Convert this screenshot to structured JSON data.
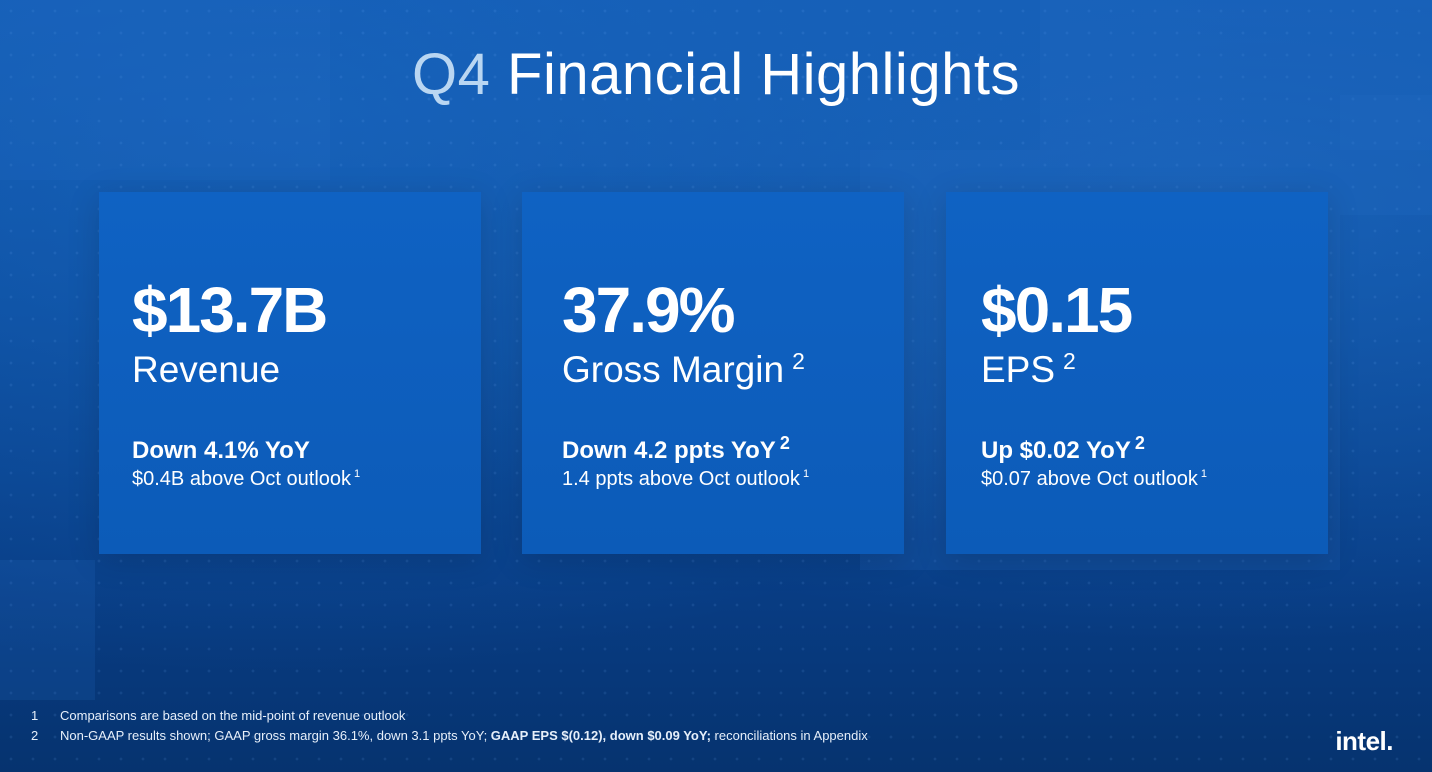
{
  "title": {
    "q4": "Q4",
    "rest": "Financial Highlights"
  },
  "cards": [
    {
      "value": "$13.7B",
      "label": "Revenue",
      "label_sup": "",
      "change": "Down 4.1% YoY",
      "change_sup": "",
      "outlook": "$0.4B above Oct outlook",
      "outlook_sup": "1"
    },
    {
      "value": "37.9%",
      "label": "Gross Margin",
      "label_sup": "2",
      "change": "Down 4.2 ppts YoY",
      "change_sup": "2",
      "outlook": "1.4 ppts above Oct outlook",
      "outlook_sup": "1"
    },
    {
      "value": "$0.15",
      "label": "EPS",
      "label_sup": "2",
      "change": "Up $0.02 YoY",
      "change_sup": "2",
      "outlook": "$0.07 above Oct outlook",
      "outlook_sup": "1"
    }
  ],
  "footnotes": [
    {
      "num": "1",
      "text": "Comparisons are based on the mid-point of revenue outlook"
    },
    {
      "num": "2",
      "text_a": "Non-GAAP results shown; GAAP gross margin 36.1%, down 3.1 ppts YoY; ",
      "text_bold": "GAAP EPS $(0.12), down $0.09 YoY;",
      "text_b": " reconciliations in Appendix"
    }
  ],
  "logo": "intel."
}
